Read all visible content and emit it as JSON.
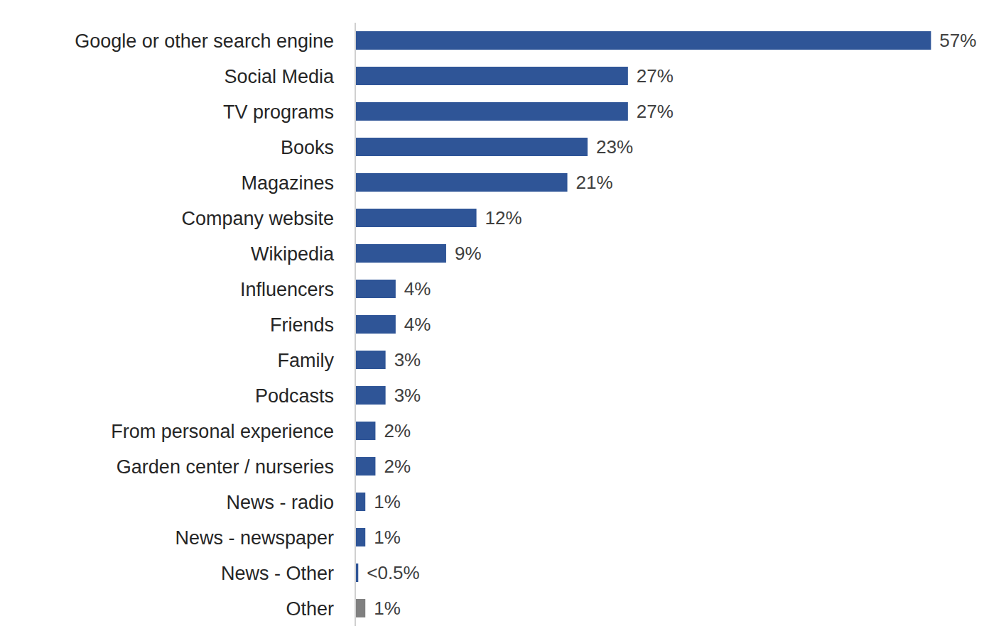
{
  "chart_data": {
    "type": "bar",
    "orientation": "horizontal",
    "categories": [
      "Google or other search engine",
      "Social Media",
      "TV programs",
      "Books",
      "Magazines",
      "Company website",
      "Wikipedia",
      "Influencers",
      "Friends",
      "Family",
      "Podcasts",
      "From personal experience",
      "Garden center / nurseries",
      "News - radio",
      "News - newspaper",
      "News - Other",
      "Other"
    ],
    "values": [
      57,
      27,
      27,
      23,
      21,
      12,
      9,
      4,
      4,
      3,
      3,
      2,
      2,
      1,
      1,
      0.3,
      1
    ],
    "value_labels": [
      "57%",
      "27%",
      "27%",
      "23%",
      "21%",
      "12%",
      "9%",
      "4%",
      "4%",
      "3%",
      "3%",
      "2%",
      "2%",
      "1%",
      "1%",
      "<0.5%",
      "1%"
    ],
    "colors": [
      "#2f5597",
      "#2f5597",
      "#2f5597",
      "#2f5597",
      "#2f5597",
      "#2f5597",
      "#2f5597",
      "#2f5597",
      "#2f5597",
      "#2f5597",
      "#2f5597",
      "#2f5597",
      "#2f5597",
      "#2f5597",
      "#2f5597",
      "#2f5597",
      "#808080"
    ],
    "xlim": [
      0,
      60
    ],
    "data_labels": true,
    "tick_labels": "y",
    "grid": false
  }
}
